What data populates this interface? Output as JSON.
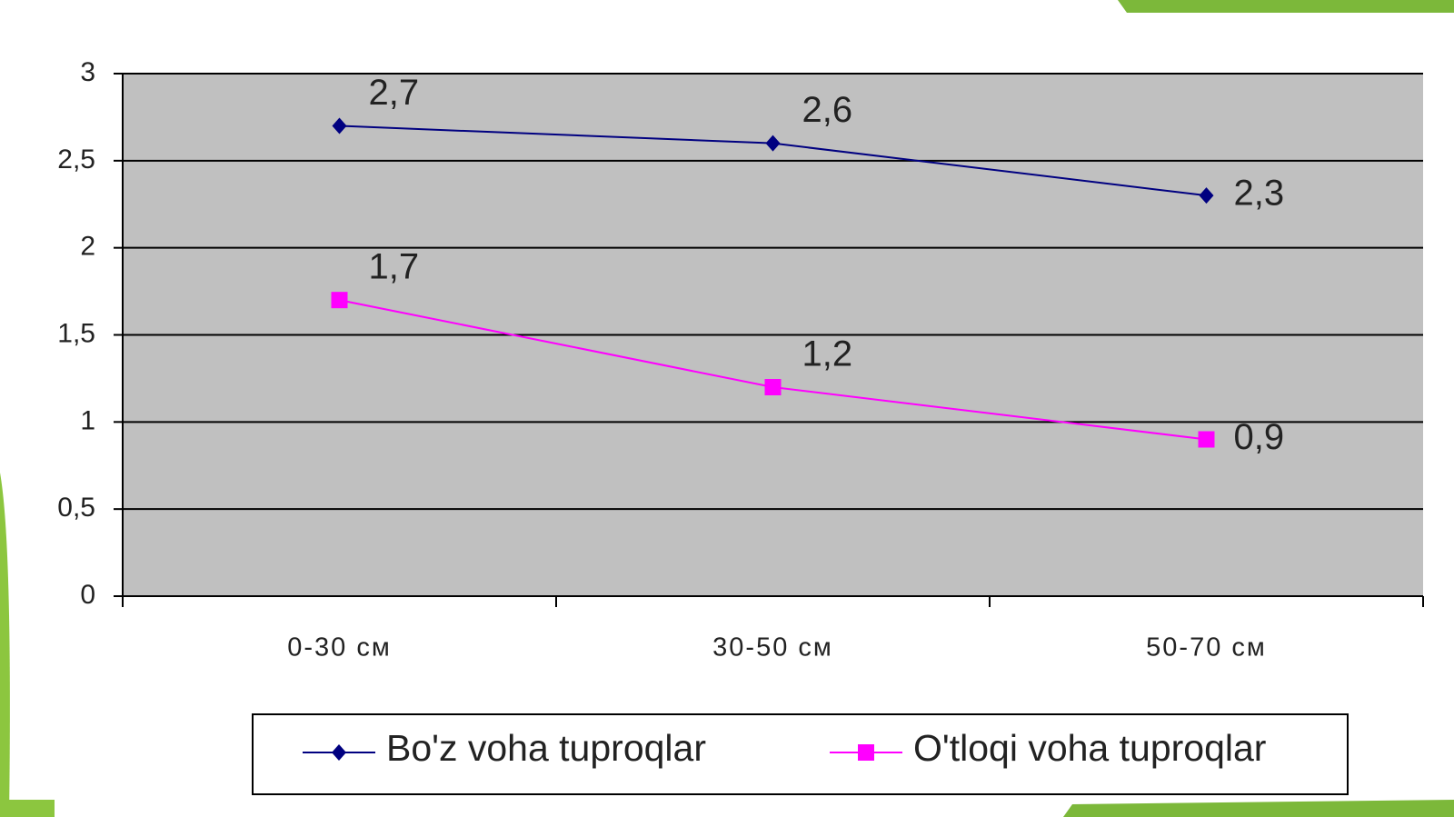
{
  "chart_data": {
    "type": "line",
    "categories": [
      "0-30 см",
      "30-50 см",
      "50-70 см"
    ],
    "series": [
      {
        "name": "Bo'z voha tuproqlar",
        "color": "#000080",
        "marker": "diamond",
        "values": [
          2.7,
          2.6,
          2.3
        ],
        "value_labels": [
          "2,7",
          "2,6",
          "2,3"
        ]
      },
      {
        "name": "O'tloqi voha tuproqlar",
        "color": "#ff00ff",
        "marker": "square",
        "values": [
          1.7,
          1.2,
          0.9
        ],
        "value_labels": [
          "1,7",
          "1,2",
          "0,9"
        ]
      }
    ],
    "ylim": [
      0,
      3
    ],
    "yticks": [
      0,
      {
        "value": 0.5,
        "label": "0,5"
      },
      1,
      {
        "value": 1.5,
        "label": "1,5"
      },
      2,
      {
        "value": 2.5,
        "label": "2,5"
      },
      3
    ],
    "grid": true,
    "legend": "bottom",
    "background": "#c0c0c0"
  }
}
